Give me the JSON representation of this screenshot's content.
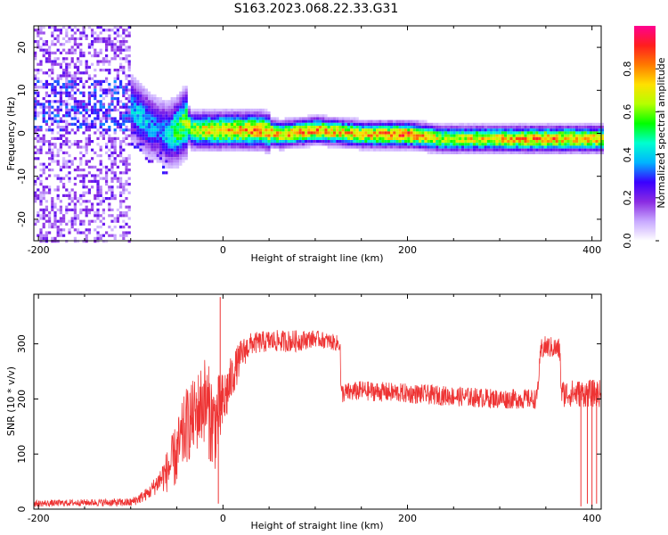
{
  "title": "S163.2023.068.22.33.G31",
  "chart_data": [
    {
      "type": "heatmap",
      "xlabel": "Height of straight line (km)",
      "ylabel": "Frequency (Hz)",
      "xlim": [
        -205,
        410
      ],
      "ylim": [
        -25,
        25
      ],
      "xticks": [
        "-200",
        "0",
        "200",
        "400"
      ],
      "xtick_values": [
        -200,
        0,
        200,
        400
      ],
      "yticks": [
        "-20",
        "-10",
        "0",
        "10",
        "20"
      ],
      "ytick_values": [
        -20,
        -10,
        0,
        10,
        20
      ],
      "colorbar": {
        "label": "Normalized spectral amplitude",
        "range": [
          0,
          1
        ],
        "ticks": [
          "0.0",
          "0.2",
          "0.4",
          "0.6",
          "0.8"
        ],
        "tick_values": [
          0.0,
          0.2,
          0.4,
          0.6,
          0.8
        ],
        "colors": [
          "#ffffff",
          "#c8a8ff",
          "#8a2be2",
          "#3a00ff",
          "#00b4ff",
          "#00ffd0",
          "#00ff00",
          "#b4ff00",
          "#ffe000",
          "#ff7a00",
          "#ff1e1e",
          "#ff0090"
        ]
      },
      "ridge": {
        "x": [
          -100,
          -90,
          -80,
          -70,
          -60,
          -50,
          -42,
          -35,
          -20,
          0,
          40,
          60,
          100,
          150,
          200,
          235,
          300,
          350,
          410
        ],
        "frequency": [
          6,
          4,
          2,
          1,
          0,
          1,
          3,
          1,
          1,
          1,
          1,
          0,
          1,
          0,
          0,
          -1,
          -1,
          -1,
          -1
        ],
        "amplitude": [
          0.4,
          0.45,
          0.4,
          0.35,
          0.45,
          0.6,
          0.65,
          0.7,
          0.75,
          0.8,
          0.85,
          0.8,
          0.85,
          0.8,
          0.9,
          0.7,
          0.8,
          0.85,
          0.8
        ]
      },
      "noise_region": {
        "x_from": -205,
        "x_to": -100,
        "amplitude": 0.2
      }
    },
    {
      "type": "line",
      "xlabel": "Height of straight line (km)",
      "ylabel": "SNR (10 * v/v)",
      "xlim": [
        -205,
        410
      ],
      "ylim": [
        0,
        390
      ],
      "xticks": [
        "-200",
        "0",
        "200",
        "400"
      ],
      "xtick_values": [
        -200,
        0,
        200,
        400
      ],
      "yticks": [
        "0",
        "100",
        "200",
        "300"
      ],
      "ytick_values": [
        0,
        100,
        200,
        300
      ],
      "color": "#ee3333",
      "envelope": {
        "x": [
          -205,
          -150,
          -100,
          -90,
          -80,
          -70,
          -60,
          -50,
          -40,
          -30,
          -20,
          -10,
          0,
          10,
          20,
          30,
          50,
          80,
          100,
          127,
          128,
          150,
          200,
          250,
          300,
          340,
          345,
          350,
          365,
          367,
          390,
          410
        ],
        "mean": [
          10,
          12,
          12,
          20,
          30,
          50,
          70,
          100,
          150,
          170,
          200,
          150,
          190,
          240,
          280,
          300,
          305,
          305,
          310,
          300,
          210,
          215,
          210,
          205,
          200,
          200,
          290,
          295,
          290,
          210,
          210,
          210
        ],
        "spread": [
          6,
          6,
          8,
          10,
          12,
          20,
          40,
          60,
          70,
          70,
          80,
          90,
          60,
          40,
          30,
          20,
          20,
          20,
          15,
          15,
          18,
          18,
          18,
          18,
          18,
          18,
          20,
          20,
          20,
          25,
          25,
          25
        ]
      },
      "spikes": [
        {
          "x": -3,
          "y": 385
        },
        {
          "x": -5,
          "y": 10
        },
        {
          "x": 388,
          "y": 5
        },
        {
          "x": 395,
          "y": 10
        },
        {
          "x": 400,
          "y": 5
        },
        {
          "x": 405,
          "y": 10
        }
      ]
    }
  ]
}
